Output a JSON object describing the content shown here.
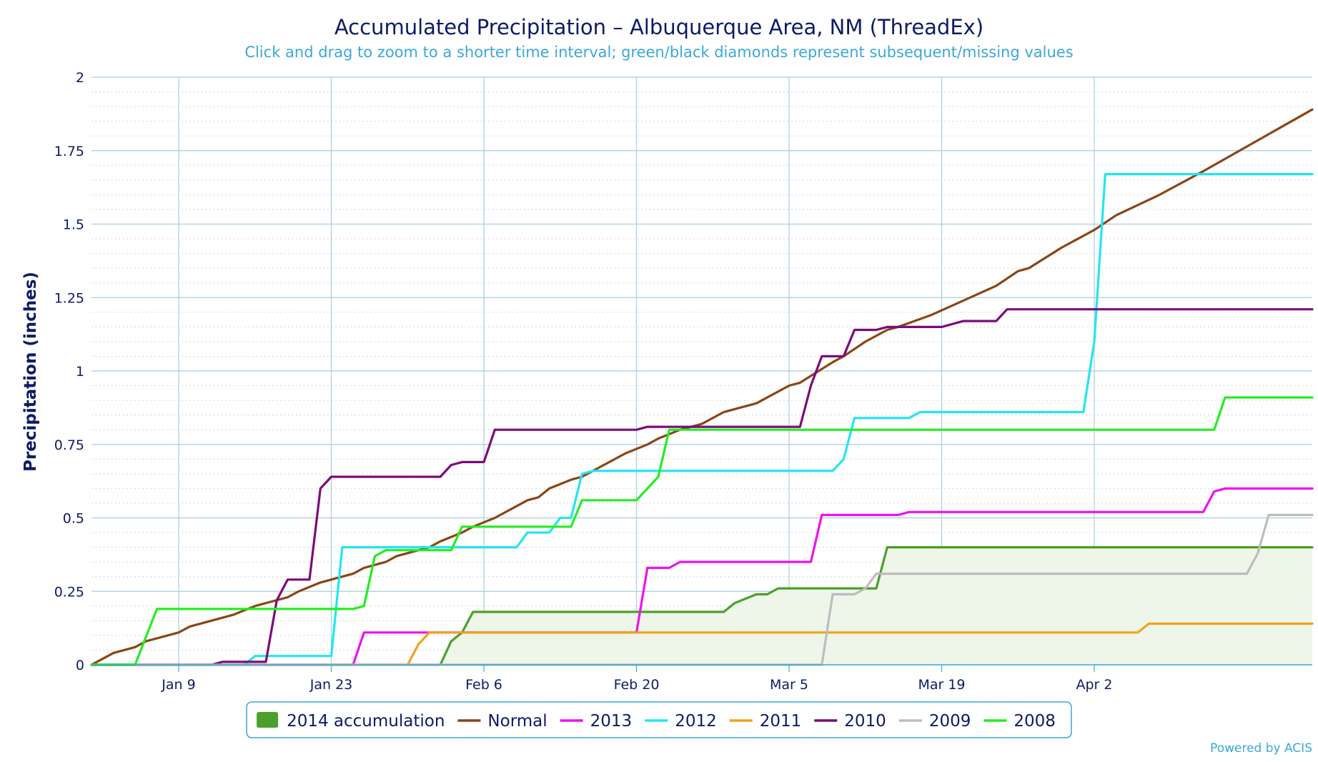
{
  "chart_data": {
    "type": "line",
    "title": "Accumulated Precipitation – Albuquerque Area, NM (ThreadEx)",
    "subtitle": "Click and drag to zoom to a shorter time interval; green/black diamonds represent subsequent/missing values",
    "ylabel": "Precipitation (inches)",
    "xlabel": "",
    "credit": "Powered by ACIS",
    "x_unit": "day of year",
    "xlim": [
      1,
      113
    ],
    "ylim": [
      0,
      2
    ],
    "y_ticks": [
      0,
      0.25,
      0.5,
      0.75,
      1,
      1.25,
      1.5,
      1.75,
      2
    ],
    "y_tick_labels": [
      "0",
      "0.25",
      "0.5",
      "0.75",
      "1",
      "1.25",
      "1.5",
      "1.75",
      "2"
    ],
    "x_ticks": [
      {
        "day": 9,
        "label": "Jan 9"
      },
      {
        "day": 23,
        "label": "Jan 23"
      },
      {
        "day": 37,
        "label": "Feb 6"
      },
      {
        "day": 51,
        "label": "Feb 20"
      },
      {
        "day": 65,
        "label": "Mar 5"
      },
      {
        "day": 79,
        "label": "Mar 19"
      },
      {
        "day": 93,
        "label": "Apr 2"
      }
    ],
    "grid": true,
    "legend_position": "bottom-center",
    "series": [
      {
        "name": "2014 accumulation",
        "style": "area",
        "color": "#4aa02c",
        "fill": "#eef5e9",
        "points": [
          [
            1,
            0
          ],
          [
            33,
            0
          ],
          [
            34,
            0.08
          ],
          [
            35,
            0.11
          ],
          [
            36,
            0.18
          ],
          [
            37,
            0.18
          ],
          [
            48,
            0.18
          ],
          [
            59,
            0.18
          ],
          [
            60,
            0.21
          ],
          [
            62,
            0.24
          ],
          [
            63,
            0.24
          ],
          [
            64,
            0.26
          ],
          [
            68,
            0.26
          ],
          [
            71,
            0.26
          ],
          [
            72,
            0.26
          ],
          [
            73,
            0.26
          ],
          [
            74,
            0.4
          ],
          [
            113,
            0.4
          ]
        ]
      },
      {
        "name": "Normal",
        "color": "#8b4513",
        "points": [
          [
            1,
            0
          ],
          [
            2,
            0.02
          ],
          [
            3,
            0.04
          ],
          [
            5,
            0.06
          ],
          [
            6,
            0.08
          ],
          [
            9,
            0.11
          ],
          [
            10,
            0.13
          ],
          [
            14,
            0.17
          ],
          [
            16,
            0.2
          ],
          [
            19,
            0.23
          ],
          [
            20,
            0.25
          ],
          [
            22,
            0.28
          ],
          [
            25,
            0.31
          ],
          [
            26,
            0.33
          ],
          [
            28,
            0.35
          ],
          [
            29,
            0.37
          ],
          [
            30,
            0.38
          ],
          [
            32,
            0.4
          ],
          [
            33,
            0.42
          ],
          [
            35,
            0.45
          ],
          [
            36,
            0.47
          ],
          [
            38,
            0.5
          ],
          [
            41,
            0.56
          ],
          [
            42,
            0.57
          ],
          [
            43,
            0.6
          ],
          [
            45,
            0.63
          ],
          [
            46,
            0.64
          ],
          [
            48,
            0.68
          ],
          [
            50,
            0.72
          ],
          [
            52,
            0.75
          ],
          [
            53,
            0.77
          ],
          [
            55,
            0.8
          ],
          [
            57,
            0.82
          ],
          [
            59,
            0.86
          ],
          [
            62,
            0.89
          ],
          [
            65,
            0.95
          ],
          [
            66,
            0.96
          ],
          [
            69,
            1.03
          ],
          [
            70,
            1.05
          ],
          [
            72,
            1.1
          ],
          [
            74,
            1.14
          ],
          [
            75,
            1.15
          ],
          [
            78,
            1.19
          ],
          [
            81,
            1.24
          ],
          [
            84,
            1.29
          ],
          [
            86,
            1.34
          ],
          [
            87,
            1.35
          ],
          [
            90,
            1.42
          ],
          [
            93,
            1.48
          ],
          [
            95,
            1.53
          ],
          [
            99,
            1.6
          ],
          [
            103,
            1.68
          ],
          [
            113,
            1.89
          ]
        ]
      },
      {
        "name": "2013",
        "color": "#ee11ee",
        "points": [
          [
            1,
            0
          ],
          [
            25,
            0
          ],
          [
            26,
            0.11
          ],
          [
            31,
            0.11
          ],
          [
            51,
            0.11
          ],
          [
            52,
            0.33
          ],
          [
            54,
            0.33
          ],
          [
            55,
            0.35
          ],
          [
            63,
            0.35
          ],
          [
            67,
            0.35
          ],
          [
            68,
            0.51
          ],
          [
            75,
            0.51
          ],
          [
            76,
            0.52
          ],
          [
            82,
            0.52
          ],
          [
            97,
            0.52
          ],
          [
            103,
            0.52
          ],
          [
            104,
            0.59
          ],
          [
            105,
            0.6
          ],
          [
            113,
            0.6
          ]
        ]
      },
      {
        "name": "2012",
        "color": "#22e6f2",
        "points": [
          [
            1,
            0
          ],
          [
            15,
            0
          ],
          [
            16,
            0.03
          ],
          [
            23,
            0.03
          ],
          [
            24,
            0.4
          ],
          [
            34,
            0.4
          ],
          [
            40,
            0.4
          ],
          [
            41,
            0.45
          ],
          [
            43,
            0.45
          ],
          [
            44,
            0.5
          ],
          [
            45,
            0.5
          ],
          [
            46,
            0.65
          ],
          [
            47,
            0.66
          ],
          [
            52,
            0.66
          ],
          [
            55,
            0.66
          ],
          [
            68,
            0.66
          ],
          [
            69,
            0.66
          ],
          [
            70,
            0.7
          ],
          [
            71,
            0.84
          ],
          [
            76,
            0.84
          ],
          [
            77,
            0.86
          ],
          [
            91,
            0.86
          ],
          [
            92,
            0.86
          ],
          [
            93,
            1.1
          ],
          [
            94,
            1.67
          ],
          [
            113,
            1.67
          ]
        ]
      },
      {
        "name": "2011",
        "color": "#f2a11b",
        "points": [
          [
            1,
            0
          ],
          [
            30,
            0
          ],
          [
            31,
            0.07
          ],
          [
            32,
            0.11
          ],
          [
            37,
            0.11
          ],
          [
            52,
            0.11
          ],
          [
            56,
            0.11
          ],
          [
            96,
            0.11
          ],
          [
            97,
            0.11
          ],
          [
            98,
            0.14
          ],
          [
            113,
            0.14
          ]
        ]
      },
      {
        "name": "2010",
        "color": "#7b0c7b",
        "points": [
          [
            1,
            0
          ],
          [
            12,
            0
          ],
          [
            13,
            0.01
          ],
          [
            17,
            0.01
          ],
          [
            18,
            0.22
          ],
          [
            19,
            0.29
          ],
          [
            21,
            0.29
          ],
          [
            22,
            0.6
          ],
          [
            23,
            0.64
          ],
          [
            33,
            0.64
          ],
          [
            34,
            0.68
          ],
          [
            35,
            0.69
          ],
          [
            37,
            0.69
          ],
          [
            38,
            0.8
          ],
          [
            46,
            0.8
          ],
          [
            51,
            0.8
          ],
          [
            52,
            0.81
          ],
          [
            64,
            0.81
          ],
          [
            66,
            0.81
          ],
          [
            67,
            0.95
          ],
          [
            68,
            1.05
          ],
          [
            70,
            1.05
          ],
          [
            71,
            1.14
          ],
          [
            73,
            1.14
          ],
          [
            74,
            1.15
          ],
          [
            79,
            1.15
          ],
          [
            80,
            1.16
          ],
          [
            81,
            1.17
          ],
          [
            84,
            1.17
          ],
          [
            85,
            1.21
          ],
          [
            113,
            1.21
          ]
        ]
      },
      {
        "name": "2009",
        "color": "#bdbdbd",
        "points": [
          [
            1,
            0
          ],
          [
            66,
            0
          ],
          [
            68,
            0
          ],
          [
            69,
            0.24
          ],
          [
            71,
            0.24
          ],
          [
            72,
            0.26
          ],
          [
            73,
            0.31
          ],
          [
            75,
            0.31
          ],
          [
            92,
            0.31
          ],
          [
            107,
            0.31
          ],
          [
            108,
            0.38
          ],
          [
            109,
            0.51
          ],
          [
            113,
            0.51
          ]
        ]
      },
      {
        "name": "2008",
        "color": "#22ee22",
        "points": [
          [
            1,
            0
          ],
          [
            5,
            0
          ],
          [
            7,
            0.19
          ],
          [
            10,
            0.19
          ],
          [
            22,
            0.19
          ],
          [
            25,
            0.19
          ],
          [
            26,
            0.2
          ],
          [
            27,
            0.37
          ],
          [
            28,
            0.39
          ],
          [
            30,
            0.39
          ],
          [
            34,
            0.39
          ],
          [
            35,
            0.47
          ],
          [
            39,
            0.47
          ],
          [
            45,
            0.47
          ],
          [
            46,
            0.56
          ],
          [
            50,
            0.56
          ],
          [
            51,
            0.56
          ],
          [
            52,
            0.6
          ],
          [
            53,
            0.64
          ],
          [
            54,
            0.8
          ],
          [
            61,
            0.8
          ],
          [
            75,
            0.8
          ],
          [
            104,
            0.8
          ],
          [
            105,
            0.91
          ],
          [
            113,
            0.91
          ]
        ]
      }
    ]
  }
}
